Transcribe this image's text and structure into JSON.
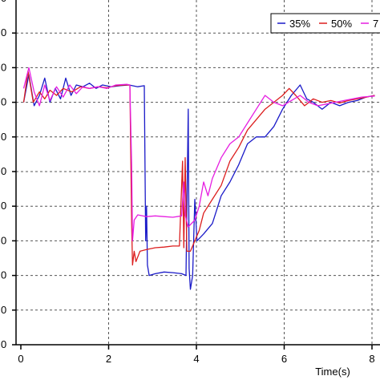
{
  "chart_data": {
    "type": "line",
    "title": "",
    "xlabel": "Time(s)",
    "ylabel": "",
    "xlim": [
      -0.1,
      8.2
    ],
    "ylim": [
      0,
      1
    ],
    "x_ticks": [
      0,
      2,
      4,
      6,
      8
    ],
    "x_tick_labels": [
      "0",
      "2",
      "4",
      "6",
      "8"
    ],
    "y_ticks": [
      0,
      0.1,
      0.2,
      0.3,
      0.4,
      0.5,
      0.6,
      0.7,
      0.8,
      0.9,
      1.0
    ],
    "grid": true,
    "legend_position": "top-right",
    "series": [
      {
        "name": "35%",
        "color": "#1a1ac8",
        "dash": true,
        "points": [
          [
            0.1,
            0.7
          ],
          [
            0.22,
            0.78
          ],
          [
            0.34,
            0.69
          ],
          [
            0.46,
            0.72
          ],
          [
            0.58,
            0.77
          ],
          [
            0.7,
            0.7
          ],
          [
            0.82,
            0.74
          ],
          [
            0.94,
            0.71
          ],
          [
            1.06,
            0.77
          ],
          [
            1.18,
            0.72
          ],
          [
            1.3,
            0.75
          ],
          [
            1.45,
            0.745
          ],
          [
            1.6,
            0.755
          ],
          [
            1.75,
            0.74
          ],
          [
            1.9,
            0.75
          ],
          [
            2.1,
            0.745
          ],
          [
            2.3,
            0.748
          ],
          [
            2.5,
            0.75
          ],
          [
            2.7,
            0.745
          ],
          [
            2.85,
            0.748
          ],
          [
            2.88,
            0.3
          ],
          [
            2.9,
            0.4
          ],
          [
            2.92,
            0.23
          ],
          [
            2.96,
            0.2
          ],
          [
            3.1,
            0.205
          ],
          [
            3.3,
            0.21
          ],
          [
            3.5,
            0.208
          ],
          [
            3.7,
            0.205
          ],
          [
            3.8,
            0.2
          ],
          [
            3.85,
            0.68
          ],
          [
            3.87,
            0.22
          ],
          [
            3.9,
            0.16
          ],
          [
            3.95,
            0.2
          ],
          [
            4.0,
            0.42
          ],
          [
            4.05,
            0.3
          ],
          [
            4.2,
            0.32
          ],
          [
            4.4,
            0.35
          ],
          [
            4.6,
            0.43
          ],
          [
            4.8,
            0.47
          ],
          [
            5.0,
            0.52
          ],
          [
            5.2,
            0.58
          ],
          [
            5.4,
            0.6
          ],
          [
            5.6,
            0.6
          ],
          [
            5.8,
            0.63
          ],
          [
            6.0,
            0.68
          ],
          [
            6.2,
            0.72
          ],
          [
            6.4,
            0.75
          ],
          [
            6.55,
            0.71
          ],
          [
            6.7,
            0.7
          ],
          [
            6.9,
            0.68
          ],
          [
            7.1,
            0.7
          ],
          [
            7.3,
            0.69
          ],
          [
            7.5,
            0.7
          ],
          [
            7.7,
            0.705
          ],
          [
            7.9,
            0.715
          ],
          [
            8.1,
            0.72
          ]
        ]
      },
      {
        "name": "50%",
        "color": "#dc1e1e",
        "dash": true,
        "points": [
          [
            0.1,
            0.7
          ],
          [
            0.2,
            0.79
          ],
          [
            0.32,
            0.7
          ],
          [
            0.46,
            0.73
          ],
          [
            0.58,
            0.71
          ],
          [
            0.7,
            0.735
          ],
          [
            0.85,
            0.72
          ],
          [
            1.0,
            0.74
          ],
          [
            1.2,
            0.73
          ],
          [
            1.4,
            0.745
          ],
          [
            1.6,
            0.74
          ],
          [
            1.8,
            0.745
          ],
          [
            2.0,
            0.742
          ],
          [
            2.2,
            0.748
          ],
          [
            2.4,
            0.75
          ],
          [
            2.52,
            0.75
          ],
          [
            2.54,
            0.55
          ],
          [
            2.56,
            0.35
          ],
          [
            2.58,
            0.23
          ],
          [
            2.62,
            0.27
          ],
          [
            2.66,
            0.24
          ],
          [
            2.75,
            0.27
          ],
          [
            2.9,
            0.275
          ],
          [
            3.1,
            0.28
          ],
          [
            3.3,
            0.282
          ],
          [
            3.5,
            0.285
          ],
          [
            3.65,
            0.285
          ],
          [
            3.72,
            0.53
          ],
          [
            3.75,
            0.28
          ],
          [
            3.78,
            0.54
          ],
          [
            3.82,
            0.27
          ],
          [
            3.9,
            0.27
          ],
          [
            4.0,
            0.3
          ],
          [
            4.1,
            0.33
          ],
          [
            4.2,
            0.38
          ],
          [
            4.4,
            0.42
          ],
          [
            4.6,
            0.46
          ],
          [
            4.8,
            0.53
          ],
          [
            5.0,
            0.57
          ],
          [
            5.2,
            0.62
          ],
          [
            5.4,
            0.65
          ],
          [
            5.6,
            0.68
          ],
          [
            5.8,
            0.7
          ],
          [
            6.0,
            0.72
          ],
          [
            6.15,
            0.74
          ],
          [
            6.3,
            0.72
          ],
          [
            6.5,
            0.69
          ],
          [
            6.7,
            0.71
          ],
          [
            6.9,
            0.7
          ],
          [
            7.1,
            0.705
          ],
          [
            7.3,
            0.698
          ],
          [
            7.5,
            0.705
          ],
          [
            7.8,
            0.712
          ],
          [
            8.1,
            0.72
          ]
        ]
      },
      {
        "name": "7",
        "color": "#e61ee1",
        "dash": false,
        "points": [
          [
            0.1,
            0.74
          ],
          [
            0.22,
            0.8
          ],
          [
            0.34,
            0.73
          ],
          [
            0.46,
            0.69
          ],
          [
            0.58,
            0.75
          ],
          [
            0.7,
            0.705
          ],
          [
            0.85,
            0.745
          ],
          [
            1.0,
            0.715
          ],
          [
            1.15,
            0.75
          ],
          [
            1.3,
            0.725
          ],
          [
            1.45,
            0.745
          ],
          [
            1.6,
            0.74
          ],
          [
            1.8,
            0.745
          ],
          [
            2.0,
            0.74
          ],
          [
            2.2,
            0.75
          ],
          [
            2.45,
            0.752
          ],
          [
            2.52,
            0.75
          ],
          [
            2.56,
            0.52
          ],
          [
            2.58,
            0.3
          ],
          [
            2.62,
            0.36
          ],
          [
            2.7,
            0.375
          ],
          [
            2.9,
            0.37
          ],
          [
            3.1,
            0.372
          ],
          [
            3.3,
            0.37
          ],
          [
            3.5,
            0.368
          ],
          [
            3.7,
            0.372
          ],
          [
            3.75,
            0.47
          ],
          [
            3.78,
            0.375
          ],
          [
            3.85,
            0.34
          ],
          [
            4.0,
            0.36
          ],
          [
            4.1,
            0.4
          ],
          [
            4.2,
            0.47
          ],
          [
            4.3,
            0.43
          ],
          [
            4.4,
            0.48
          ],
          [
            4.6,
            0.54
          ],
          [
            4.8,
            0.58
          ],
          [
            5.0,
            0.6
          ],
          [
            5.2,
            0.64
          ],
          [
            5.4,
            0.68
          ],
          [
            5.6,
            0.72
          ],
          [
            5.8,
            0.7
          ],
          [
            6.0,
            0.69
          ],
          [
            6.2,
            0.705
          ],
          [
            6.4,
            0.72
          ],
          [
            6.6,
            0.7
          ],
          [
            6.8,
            0.69
          ],
          [
            7.0,
            0.695
          ],
          [
            7.2,
            0.7
          ],
          [
            7.4,
            0.705
          ],
          [
            7.6,
            0.71
          ],
          [
            7.8,
            0.715
          ],
          [
            8.1,
            0.718
          ]
        ]
      }
    ]
  }
}
